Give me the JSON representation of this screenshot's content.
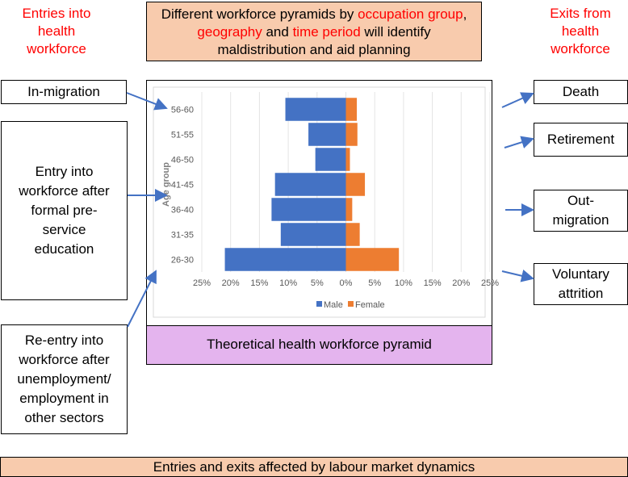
{
  "header": {
    "entries_label": [
      "Entries into",
      "health",
      "workforce"
    ],
    "exits_label": [
      "Exits from",
      "health",
      "workforce"
    ],
    "center_parts": [
      {
        "text": "Different workforce pyramids by ",
        "red": false
      },
      {
        "text": "occupation group",
        "red": true
      },
      {
        "text": ",",
        "red": false
      },
      {
        "text": "geography",
        "red": true
      },
      {
        "text": " and ",
        "red": false
      },
      {
        "text": "time period",
        "red": true
      },
      {
        "text": " will identify",
        "red": false
      },
      {
        "text": "maldistribution and aid planning",
        "red": false
      }
    ]
  },
  "entries": [
    {
      "lines": [
        "In-migration"
      ]
    },
    {
      "lines": [
        "Entry into",
        "workforce after",
        "formal pre-",
        "service",
        "education"
      ]
    },
    {
      "lines": [
        "Re-entry into",
        "workforce after",
        "unemployment/",
        "employment in",
        "other sectors"
      ]
    }
  ],
  "exits": [
    {
      "lines": [
        "Death"
      ]
    },
    {
      "lines": [
        "Retirement"
      ]
    },
    {
      "lines": [
        "Out-",
        "migration"
      ]
    },
    {
      "lines": [
        "Voluntary",
        "attrition"
      ]
    }
  ],
  "pyramid_caption": "Theoretical health workforce pyramid",
  "footer": "Entries and exits affected by labour market dynamics",
  "colors": {
    "male": "#4472c4",
    "female": "#ed7d31",
    "peach": "#f8cbad",
    "caption_bg": "#e4b4ee",
    "arrow": "#4472c4",
    "red_text": "#ff0000"
  },
  "chart_data": {
    "type": "bar",
    "orientation": "horizontal",
    "title": "",
    "xlabel": "",
    "ylabel": "Age group",
    "categories": [
      "56-60",
      "51-55",
      "46-50",
      "41-45",
      "36-40",
      "31-35",
      "26-30"
    ],
    "series": [
      {
        "name": "Male",
        "values": [
          -10.5,
          -6.5,
          -5.3,
          -12.3,
          -12.9,
          -11.3,
          -21.0
        ]
      },
      {
        "name": "Female",
        "values": [
          1.9,
          2.0,
          0.7,
          3.3,
          1.1,
          2.4,
          9.2
        ]
      }
    ],
    "xlim": [
      -25,
      25
    ],
    "xticks": [
      "25%",
      "20%",
      "15%",
      "10%",
      "5%",
      "0%",
      "5%",
      "10%",
      "15%",
      "20%",
      "25%"
    ],
    "grid": true,
    "legend": "bottom"
  }
}
